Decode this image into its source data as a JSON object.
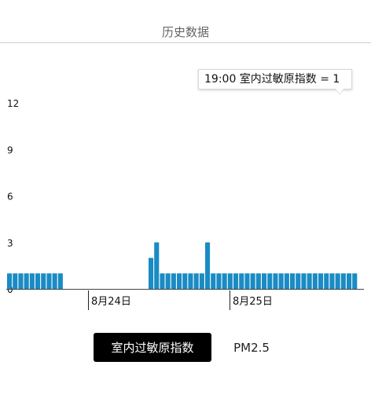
{
  "header": {
    "title": "历史数据"
  },
  "tooltip": {
    "text": "19:00 室内过敏原指数 = 1"
  },
  "tabs": [
    {
      "label": "室内过敏原指数",
      "active": true
    },
    {
      "label": "PM2.5",
      "active": false
    }
  ],
  "colors": {
    "bar": "#1a8bc4",
    "axis": "#444444"
  },
  "chart_data": {
    "type": "bar",
    "title": "",
    "xlabel": "",
    "ylabel": "",
    "ylim": [
      0,
      12
    ],
    "yticks": [
      0,
      3,
      6,
      9,
      12
    ],
    "xtick_labels": [
      "8月24日",
      "8月25日"
    ],
    "bar_slots": 62,
    "values": [
      1,
      1,
      1,
      1,
      1,
      1,
      1,
      1,
      1,
      1,
      null,
      null,
      null,
      null,
      null,
      null,
      null,
      null,
      null,
      null,
      null,
      null,
      null,
      null,
      null,
      2,
      3,
      1,
      1,
      1,
      1,
      1,
      1,
      1,
      1,
      3,
      1,
      1,
      1,
      1,
      1,
      1,
      1,
      1,
      1,
      1,
      1,
      1,
      1,
      1,
      1,
      1,
      1,
      1,
      1,
      1,
      1,
      1,
      1,
      1,
      1,
      1
    ],
    "grid": false
  }
}
